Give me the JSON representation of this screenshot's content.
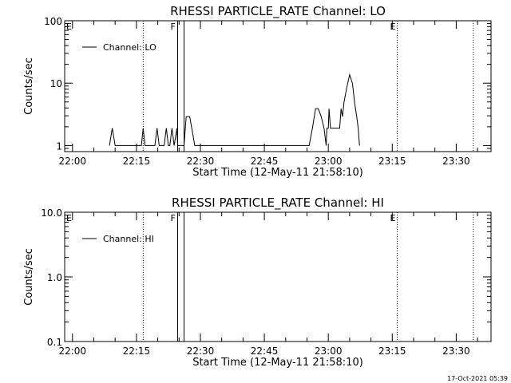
{
  "chart_data": [
    {
      "type": "line",
      "title": "RHESSI PARTICLE_RATE Channel: LO",
      "xlabel": "Start Time (12-May-11 21:58:10)",
      "ylabel": "Counts/sec",
      "xscale": "time",
      "yscale": "log",
      "xlim": [
        "21:58:10",
        "23:38:10"
      ],
      "ylim": [
        0.8,
        100
      ],
      "xticks": [
        "22:00",
        "22:15",
        "22:30",
        "22:45",
        "23:00",
        "23:15",
        "23:30"
      ],
      "yticks": [
        {
          "value": 1,
          "label": "1"
        },
        {
          "value": 10,
          "label": "10"
        },
        {
          "value": 100,
          "label": "100"
        }
      ],
      "grid": false,
      "legend": {
        "location": "top-left",
        "entries": [
          "Channel: LO"
        ]
      },
      "vlines": [
        {
          "time": "22:16:35",
          "style": "dotted"
        },
        {
          "time": "22:24:40",
          "style": "solid",
          "label": "F"
        },
        {
          "time": "22:26:10",
          "style": "solid"
        },
        {
          "time": "23:16:10",
          "style": "dotted",
          "label": "E"
        },
        {
          "time": "23:34:00",
          "style": "dotted"
        }
      ],
      "edge_labels": {
        "left": "E"
      },
      "series": [
        {
          "name": "Channel: LO",
          "points": [
            [
              "22:08:40",
              1
            ],
            [
              "22:09:20",
              1.9
            ],
            [
              "22:10:00",
              1
            ],
            [
              "22:16:10",
              1
            ],
            [
              "22:16:35",
              1.9
            ],
            [
              "22:17:00",
              1
            ],
            [
              "22:19:20",
              1
            ],
            [
              "22:19:50",
              1.9
            ],
            [
              "22:20:20",
              1
            ],
            [
              "22:21:30",
              1
            ],
            [
              "22:22:00",
              1.9
            ],
            [
              "22:22:30",
              1
            ],
            [
              "22:22:50",
              1
            ],
            [
              "22:23:20",
              1.9
            ],
            [
              "22:23:50",
              1
            ],
            [
              "22:24:30",
              1.9
            ],
            [
              "22:24:40",
              1
            ],
            [
              "22:26:10",
              1
            ],
            [
              "22:26:40",
              2.9
            ],
            [
              "22:27:30",
              2.9
            ],
            [
              "22:28:10",
              1.6
            ],
            [
              "22:28:40",
              1
            ],
            [
              "22:55:30",
              1
            ],
            [
              "22:56:20",
              2.0
            ],
            [
              "22:57:00",
              3.9
            ],
            [
              "22:57:40",
              3.9
            ],
            [
              "22:58:20",
              2.9
            ],
            [
              "22:59:00",
              1.9
            ],
            [
              "22:59:30",
              1
            ],
            [
              "22:59:40",
              1.9
            ],
            [
              "23:00:00",
              1.9
            ],
            [
              "23:00:10",
              3.9
            ],
            [
              "23:00:30",
              1.9
            ],
            [
              "23:01:20",
              1.9
            ],
            [
              "23:02:10",
              1.9
            ],
            [
              "23:02:40",
              1.9
            ],
            [
              "23:03:00",
              3.9
            ],
            [
              "23:03:20",
              2.9
            ],
            [
              "23:03:40",
              4.9
            ],
            [
              "23:04:20",
              8.5
            ],
            [
              "23:05:00",
              13.7
            ],
            [
              "23:05:40",
              9.8
            ],
            [
              "23:06:10",
              4.9
            ],
            [
              "23:06:40",
              2.9
            ],
            [
              "23:07:00",
              1.9
            ],
            [
              "23:07:20",
              1
            ]
          ]
        }
      ]
    },
    {
      "type": "line",
      "title": "RHESSI PARTICLE_RATE Channel: HI",
      "xlabel": "Start Time (12-May-11 21:58:10)",
      "ylabel": "Counts/sec",
      "xscale": "time",
      "yscale": "log",
      "xlim": [
        "21:58:10",
        "23:38:10"
      ],
      "ylim": [
        0.1,
        10
      ],
      "xticks": [
        "22:00",
        "22:15",
        "22:30",
        "22:45",
        "23:00",
        "23:15",
        "23:30"
      ],
      "yticks": [
        {
          "value": 0.1,
          "label": "0.1"
        },
        {
          "value": 1,
          "label": "1.0"
        },
        {
          "value": 10,
          "label": "10.0"
        }
      ],
      "grid": false,
      "legend": {
        "location": "top-left",
        "entries": [
          "Channel: HI"
        ]
      },
      "vlines": [
        {
          "time": "22:16:35",
          "style": "dotted"
        },
        {
          "time": "22:24:40",
          "style": "solid",
          "label": "F"
        },
        {
          "time": "22:26:10",
          "style": "solid"
        },
        {
          "time": "23:16:10",
          "style": "dotted",
          "label": "E"
        },
        {
          "time": "23:34:00",
          "style": "dotted"
        }
      ],
      "edge_labels": {
        "left": "E"
      },
      "series": [
        {
          "name": "Channel: HI",
          "points": []
        }
      ]
    }
  ],
  "footer_stamp": "17-Oct-2021 05:39"
}
